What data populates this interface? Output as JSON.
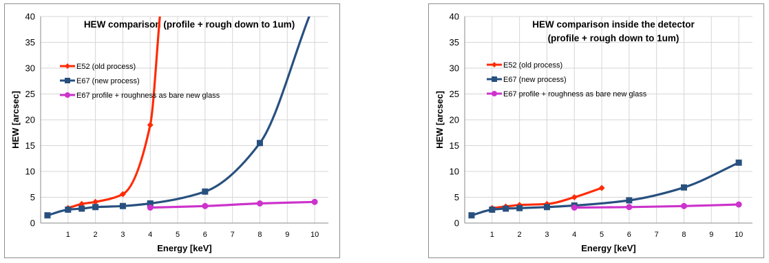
{
  "chart_data": [
    {
      "type": "line",
      "title_lines": [
        "HEW comparison (profile + rough down to 1um)"
      ],
      "xlabel": "Energy [keV]",
      "ylabel": "HEW [arcsec]",
      "xlim": [
        0,
        10.5
      ],
      "ylim": [
        0,
        40
      ],
      "xticks": [
        1,
        2,
        3,
        4,
        5,
        6,
        7,
        8,
        9,
        10
      ],
      "yticks": [
        0,
        5,
        10,
        15,
        20,
        25,
        30,
        35,
        40
      ],
      "grid": true,
      "legend_position": "left, below title",
      "series": [
        {
          "name": "E52 (old process)",
          "color": "#ff2b06",
          "marker": "diamond",
          "x": [
            1,
            1.5,
            2,
            3,
            4,
            4.35
          ],
          "y": [
            2.9,
            3.7,
            4.1,
            5.6,
            19,
            40
          ]
        },
        {
          "name": "E67 (new process)",
          "color": "#28507f",
          "marker": "square",
          "x": [
            0.25,
            1,
            1.5,
            2,
            3,
            4,
            6,
            8,
            9.8
          ],
          "y": [
            1.5,
            2.6,
            2.8,
            3.1,
            3.3,
            3.8,
            6.1,
            15.5,
            40
          ]
        },
        {
          "name": "E67 profile + roughness as bare new glass",
          "color": "#cc33cc",
          "marker": "circle",
          "x": [
            4,
            6,
            8,
            10
          ],
          "y": [
            3,
            3.3,
            3.8,
            4.1
          ]
        }
      ]
    },
    {
      "type": "line",
      "title_lines": [
        "HEW comparison inside the detector",
        "(profile + rough down to 1um)"
      ],
      "xlabel": "Energy [keV]",
      "ylabel": "HEW [arcsec]",
      "xlim": [
        0,
        10.5
      ],
      "ylim": [
        0,
        40
      ],
      "xticks": [
        1,
        2,
        3,
        4,
        5,
        6,
        7,
        8,
        9,
        10
      ],
      "yticks": [
        0,
        5,
        10,
        15,
        20,
        25,
        30,
        35,
        40
      ],
      "grid": true,
      "legend_position": "left, below title",
      "series": [
        {
          "name": "E52 (old process)",
          "color": "#ff2b06",
          "marker": "diamond",
          "x": [
            1,
            1.5,
            2,
            3,
            4,
            5
          ],
          "y": [
            2.9,
            3.2,
            3.5,
            3.7,
            5,
            6.8
          ]
        },
        {
          "name": "E67 (new process)",
          "color": "#28507f",
          "marker": "square",
          "x": [
            0.25,
            1,
            1.5,
            2,
            3,
            4,
            6,
            8,
            10
          ],
          "y": [
            1.5,
            2.6,
            2.8,
            2.9,
            3.1,
            3.4,
            4.4,
            6.9,
            11.7
          ]
        },
        {
          "name": "E67 profile + roughness as bare new glass",
          "color": "#cc33cc",
          "marker": "circle",
          "x": [
            4,
            6,
            8,
            10
          ],
          "y": [
            3,
            3.1,
            3.3,
            3.6
          ]
        }
      ]
    }
  ]
}
